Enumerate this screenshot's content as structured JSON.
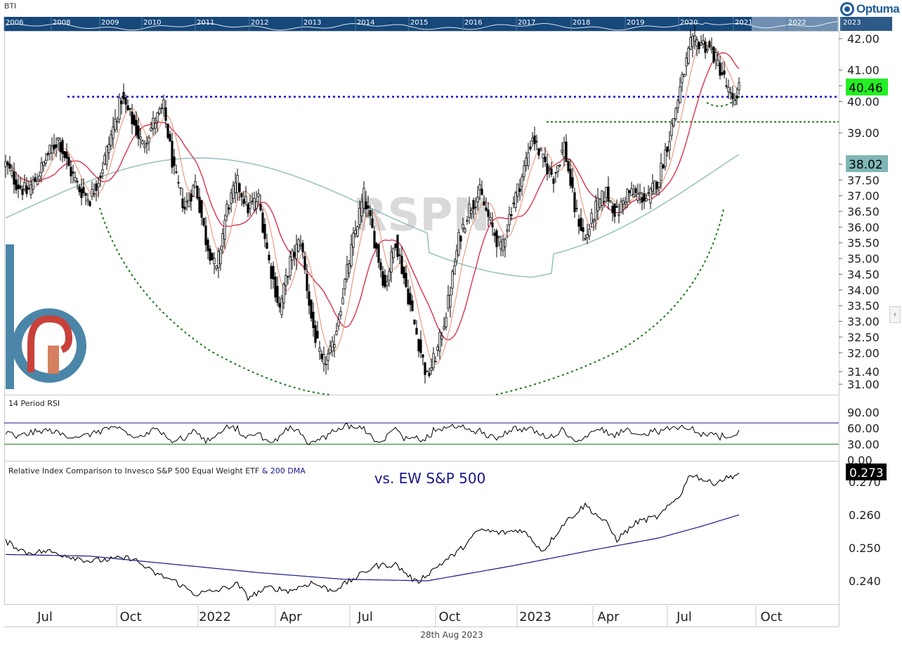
{
  "header": {
    "ticker": "BTI",
    "brand": "Optuma",
    "brand_icon": "optuma-logo-icon"
  },
  "navigator": {
    "years": [
      "2006",
      "2008",
      "2009",
      "2010",
      "2011",
      "2012",
      "2013",
      "2014",
      "2015",
      "2016",
      "2017",
      "2018",
      "2019",
      "2020",
      "2021",
      "2022",
      "2023"
    ]
  },
  "footer": {
    "date": "28th Aug 2023"
  },
  "watermark": "RSPN",
  "colors": {
    "candle": "#000000",
    "ma_short": "#e8957a",
    "ma_mid": "#d8253f",
    "ma_long": "#8fbcbc",
    "resistance": "#1010d0",
    "support": "#1a7a1a",
    "rel_line": "#000000",
    "rel_ma": "#18188a",
    "navigator_bg": "#16487a",
    "last_price_bg": "#22ee22",
    "ma_label_bg": "#7fb6b6"
  },
  "chart_data": [
    {
      "type": "candlestick",
      "title": "",
      "x_ticks": [
        "Jul",
        "Oct",
        "2022",
        "Apr",
        "Jul",
        "Oct",
        "2023",
        "Apr",
        "Jul",
        "Oct"
      ],
      "y_ticks": [
        31.0,
        31.4,
        32.0,
        32.5,
        33.0,
        33.5,
        34.0,
        34.5,
        35.0,
        35.5,
        36.0,
        36.5,
        37.0,
        37.5,
        38.0,
        39.0,
        40.0,
        40.5,
        41.0,
        42.0
      ],
      "ylim": [
        30.7,
        42.3
      ],
      "last_price": "40.46",
      "ma_label": "38.02",
      "close_path": [
        [
          0,
          38.0
        ],
        [
          5,
          37.4
        ],
        [
          10,
          37.1
        ],
        [
          15,
          37.6
        ],
        [
          20,
          38.3
        ],
        [
          25,
          38.8
        ],
        [
          30,
          37.9
        ],
        [
          35,
          37.2
        ],
        [
          40,
          36.9
        ],
        [
          45,
          37.7
        ],
        [
          50,
          38.9
        ],
        [
          55,
          40.1
        ],
        [
          60,
          39.4
        ],
        [
          65,
          38.6
        ],
        [
          70,
          39.3
        ],
        [
          75,
          39.8
        ],
        [
          80,
          37.7
        ],
        [
          85,
          36.6
        ],
        [
          90,
          37.4
        ],
        [
          95,
          35.6
        ],
        [
          100,
          34.6
        ],
        [
          105,
          36.6
        ],
        [
          110,
          37.4
        ],
        [
          115,
          36.6
        ],
        [
          120,
          36.9
        ],
        [
          125,
          34.9
        ],
        [
          130,
          33.4
        ],
        [
          135,
          34.9
        ],
        [
          140,
          35.6
        ],
        [
          145,
          33.1
        ],
        [
          150,
          31.6
        ],
        [
          155,
          32.1
        ],
        [
          160,
          33.9
        ],
        [
          165,
          35.6
        ],
        [
          170,
          37.0
        ],
        [
          175,
          35.6
        ],
        [
          180,
          34.1
        ],
        [
          185,
          35.6
        ],
        [
          190,
          34.1
        ],
        [
          195,
          32.6
        ],
        [
          200,
          31.2
        ],
        [
          205,
          32.1
        ],
        [
          210,
          33.6
        ],
        [
          215,
          35.6
        ],
        [
          220,
          36.6
        ],
        [
          225,
          37.1
        ],
        [
          230,
          36.1
        ],
        [
          235,
          35.3
        ],
        [
          240,
          36.6
        ],
        [
          245,
          37.6
        ],
        [
          250,
          38.9
        ],
        [
          255,
          38.1
        ],
        [
          260,
          37.6
        ],
        [
          265,
          38.6
        ],
        [
          270,
          36.6
        ],
        [
          275,
          35.6
        ],
        [
          280,
          36.6
        ],
        [
          285,
          37.1
        ],
        [
          290,
          36.4
        ],
        [
          295,
          37.1
        ],
        [
          300,
          37.0
        ],
        [
          305,
          36.9
        ],
        [
          310,
          37.6
        ],
        [
          315,
          38.9
        ],
        [
          320,
          40.4
        ],
        [
          325,
          41.8
        ],
        [
          330,
          41.9
        ],
        [
          335,
          41.6
        ],
        [
          340,
          40.9
        ],
        [
          345,
          39.9
        ],
        [
          348,
          40.5
        ]
      ],
      "markers": {
        "resistance_level": 40.15,
        "support_level": 39.35
      }
    },
    {
      "type": "line",
      "title": "14 Period RSI",
      "y_ticks": [
        "90.00",
        "60.00",
        "30.00",
        "0.00"
      ],
      "ylim": [
        0,
        100
      ],
      "overbought": 70,
      "oversold": 30
    },
    {
      "type": "line",
      "title": "Relative Index Comparison to Invesco S&P 500 Equal Weight ETF",
      "title_suffix": "& 200 DMA",
      "annotation": "vs. EW S&P 500",
      "y_ticks": [
        "0.240",
        "0.250",
        "0.260",
        "0.270"
      ],
      "ylim": [
        0.232,
        0.2775
      ],
      "last_value": "0.273",
      "series": [
        {
          "values": [
            [
              0,
              0.252
            ],
            [
              10,
              0.2485
            ],
            [
              20,
              0.249
            ],
            [
              30,
              0.2475
            ],
            [
              40,
              0.246
            ],
            [
              50,
              0.2465
            ],
            [
              60,
              0.247
            ],
            [
              70,
              0.2425
            ],
            [
              80,
              0.24
            ],
            [
              90,
              0.236
            ],
            [
              100,
              0.237
            ],
            [
              110,
              0.239
            ],
            [
              115,
              0.235
            ],
            [
              125,
              0.238
            ],
            [
              135,
              0.237
            ],
            [
              145,
              0.2395
            ],
            [
              155,
              0.237
            ],
            [
              165,
              0.2405
            ],
            [
              175,
              0.2445
            ],
            [
              185,
              0.245
            ],
            [
              195,
              0.2395
            ],
            [
              205,
              0.2445
            ],
            [
              215,
              0.249
            ],
            [
              225,
              0.2555
            ],
            [
              235,
              0.2545
            ],
            [
              245,
              0.2555
            ],
            [
              255,
              0.249
            ],
            [
              265,
              0.2575
            ],
            [
              275,
              0.263
            ],
            [
              285,
              0.2575
            ],
            [
              290,
              0.2525
            ],
            [
              300,
              0.258
            ],
            [
              310,
              0.2595
            ],
            [
              320,
              0.266
            ],
            [
              325,
              0.2725
            ],
            [
              335,
              0.2695
            ],
            [
              348,
              0.2725
            ]
          ]
        },
        {
          "values": [
            [
              0,
              0.248
            ],
            [
              40,
              0.2475
            ],
            [
              80,
              0.245
            ],
            [
              120,
              0.2425
            ],
            [
              160,
              0.2405
            ],
            [
              200,
              0.24
            ],
            [
              240,
              0.2445
            ],
            [
              280,
              0.2495
            ],
            [
              310,
              0.253
            ],
            [
              330,
              0.2565
            ],
            [
              348,
              0.26
            ]
          ]
        }
      ]
    }
  ]
}
